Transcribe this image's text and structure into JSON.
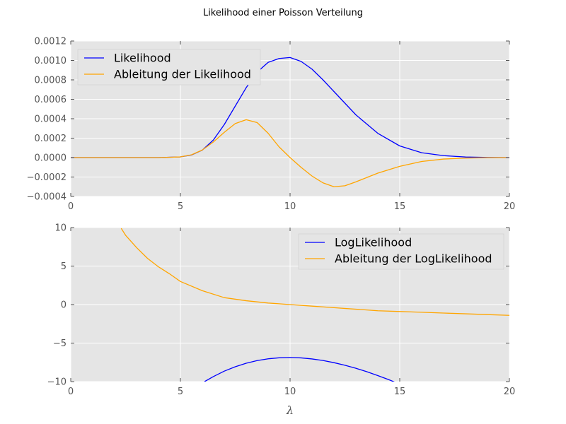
{
  "figure": {
    "suptitle": "Likelihood einer Poisson Verteilung",
    "xlabel": "λ"
  },
  "colors": {
    "background": "#e5e5e5",
    "grid": "#ffffff",
    "series_blue": "#0000ff",
    "series_orange": "#ffa500"
  },
  "chart_data": [
    {
      "type": "line",
      "title": "",
      "xlabel": "",
      "ylabel": "",
      "xlim": [
        0,
        20
      ],
      "ylim": [
        -0.0004,
        0.0012
      ],
      "grid": true,
      "legend_position": "top-left",
      "x_ticks": [
        0,
        5,
        10,
        15,
        20
      ],
      "y_ticks": [
        -0.0004,
        -0.0002,
        0.0,
        0.0002,
        0.0004,
        0.0006,
        0.0008,
        0.001,
        0.0012
      ],
      "x_tick_labels": [
        "0",
        "5",
        "10",
        "15",
        "20"
      ],
      "y_tick_labels": [
        "−0.0004",
        "−0.0002",
        "0.0000",
        "0.0002",
        "0.0004",
        "0.0006",
        "0.0008",
        "0.0010",
        "0.0012"
      ],
      "x": [
        0,
        1,
        2,
        3,
        4,
        5,
        5.5,
        6,
        6.5,
        7,
        7.5,
        8,
        8.5,
        9,
        9.5,
        10,
        10.5,
        11,
        11.5,
        12,
        12.5,
        13,
        14,
        15,
        16,
        17,
        18,
        19,
        20
      ],
      "series": [
        {
          "name": "Likelihood",
          "color": "#0000ff",
          "values": [
            0,
            0,
            0,
            0,
            2e-07,
            7e-06,
            2.6e-05,
            7.7e-05,
            0.00018,
            0.00034,
            0.00053,
            0.00072,
            0.00088,
            0.00098,
            0.00102,
            0.00103,
            0.00099,
            0.00091,
            0.0008,
            0.00068,
            0.00056,
            0.00044,
            0.00025,
            0.00012,
            5e-05,
            2e-05,
            6e-06,
            2e-06,
            0
          ]
        },
        {
          "name": "Ableitung der Likelihood",
          "color": "#ffa500",
          "values": [
            0,
            0,
            0,
            0,
            2e-07,
            7e-06,
            2.8e-05,
            7.8e-05,
            0.00016,
            0.00026,
            0.00035,
            0.00039,
            0.00036,
            0.00025,
            0.00011,
            0,
            -0.0001,
            -0.00019,
            -0.00026,
            -0.0003,
            -0.00029,
            -0.00025,
            -0.00016,
            -9e-05,
            -4e-05,
            -1.5e-05,
            -5e-06,
            -1e-06,
            0
          ]
        }
      ]
    },
    {
      "type": "line",
      "title": "",
      "xlabel": "λ",
      "ylabel": "",
      "xlim": [
        0,
        20
      ],
      "ylim": [
        -10,
        10
      ],
      "grid": true,
      "legend_position": "top-right",
      "x_ticks": [
        0,
        5,
        10,
        15,
        20
      ],
      "y_ticks": [
        -10,
        -5,
        0,
        5,
        10
      ],
      "x_tick_labels": [
        "0",
        "5",
        "10",
        "15",
        "20"
      ],
      "y_tick_labels": [
        "−10",
        "−5",
        "0",
        "5",
        "10"
      ],
      "series": [
        {
          "name": "LogLikelihood",
          "color": "#0000ff",
          "x": [
            6.1,
            6.5,
            7,
            7.5,
            8,
            8.5,
            9,
            9.5,
            10,
            10.5,
            11,
            11.5,
            12,
            12.5,
            13,
            13.5,
            14,
            14.5,
            15,
            15.3
          ],
          "values": [
            -10.0,
            -9.35,
            -8.64,
            -8.07,
            -7.61,
            -7.27,
            -7.04,
            -6.91,
            -6.87,
            -6.92,
            -7.06,
            -7.26,
            -7.54,
            -7.88,
            -8.27,
            -8.72,
            -9.22,
            -9.75,
            -10.33,
            -10.7
          ]
        },
        {
          "name": "Ableitung der LogLikelihood",
          "color": "#ffa500",
          "x": [
            2.3,
            2.5,
            3,
            3.5,
            4,
            4.5,
            5,
            6,
            7,
            8,
            9,
            10,
            11,
            12,
            13,
            14,
            15,
            16,
            17,
            18,
            19,
            20
          ],
          "values": [
            9.9,
            9.0,
            7.4,
            6.0,
            4.9,
            4.0,
            3.0,
            1.8,
            0.9,
            0.5,
            0.2,
            0.0,
            -0.2,
            -0.4,
            -0.6,
            -0.8,
            -0.9,
            -1.0,
            -1.1,
            -1.2,
            -1.3,
            -1.4
          ]
        }
      ]
    }
  ]
}
